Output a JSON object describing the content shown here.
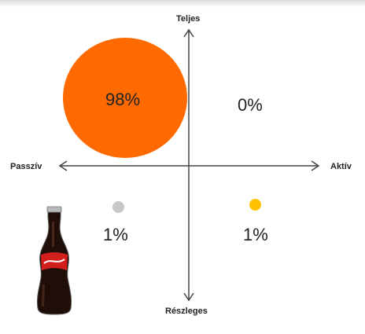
{
  "axes": {
    "top": "Teljes",
    "bottom": "Részleges",
    "left": "Passzív",
    "right": "Aktív"
  },
  "quadrants": {
    "top_left": {
      "value": "98%",
      "color": "#ff6a00"
    },
    "top_right": {
      "value": "0%"
    },
    "bottom_left": {
      "value": "1%",
      "color": "#c7c7c7"
    },
    "bottom_right": {
      "value": "1%",
      "color": "#ffc000"
    }
  },
  "image": {
    "icon": "coca-cola-bottle-icon"
  }
}
